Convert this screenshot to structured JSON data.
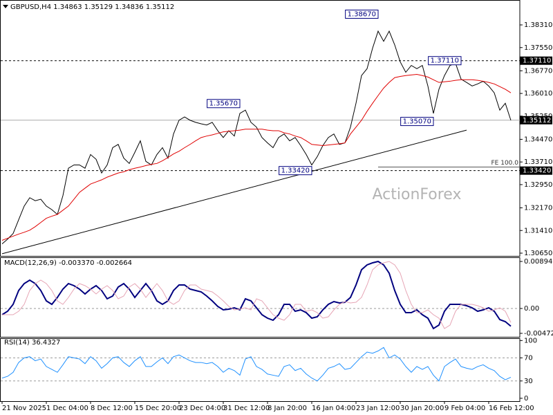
{
  "chart_data": [
    {
      "type": "line",
      "title": "GBPUSD,H4 1.34863 1.35129 1.34836 1.35112",
      "watermark": "ActionForex",
      "categories": [
        "21 Nov 2025",
        null,
        null,
        null,
        null,
        null,
        null,
        null,
        "1 Dec 04:00",
        null,
        null,
        null,
        null,
        null,
        null,
        null,
        "8 Dec 12:00",
        null,
        null,
        null,
        null,
        null,
        null,
        null,
        "15 Dec 20:00",
        null,
        null,
        null,
        null,
        null,
        null,
        null,
        "23 Dec 04:00",
        null,
        null,
        null,
        null,
        null,
        null,
        null,
        "31 Dec 12:00",
        null,
        null,
        null,
        null,
        null,
        null,
        null,
        "8 Jan 20:00",
        null,
        null,
        null,
        null,
        null,
        null,
        null,
        "16 Jan 04:00",
        null,
        null,
        null,
        null,
        null,
        null,
        null,
        "23 Jan 12:00",
        null,
        null,
        null,
        null,
        null,
        null,
        null,
        "30 Jan 20:00",
        null,
        null,
        null,
        null,
        null,
        null,
        null,
        "9 Feb 04:00",
        null,
        null,
        null,
        null,
        null,
        null,
        null,
        "16 Feb 12:00",
        null,
        null,
        null,
        null
      ],
      "series": [
        {
          "color": "#000000",
          "values": [
            1.3096,
            1.3112,
            1.3131,
            1.3177,
            1.3223,
            1.3251,
            1.3241,
            1.3246,
            1.3223,
            1.3211,
            1.3195,
            1.3258,
            1.335,
            1.3361,
            1.3361,
            1.335,
            1.3396,
            1.338,
            1.3334,
            1.3361,
            1.3419,
            1.343,
            1.3384,
            1.3366,
            1.3403,
            1.3442,
            1.3373,
            1.3361,
            1.3396,
            1.3419,
            1.3384,
            1.3465,
            1.3511,
            1.3522,
            1.3511,
            1.3504,
            1.3499,
            1.3495,
            1.3504,
            1.3476,
            1.3453,
            1.3476,
            1.3458,
            1.3534,
            1.3545,
            1.3504,
            1.3488,
            1.3453,
            1.3435,
            1.3419,
            1.3453,
            1.3465,
            1.3442,
            1.3453,
            1.3426,
            1.3396,
            1.3361,
            1.3389,
            1.3426,
            1.3453,
            1.3465,
            1.343,
            1.3435,
            1.3488,
            1.3568,
            1.3661,
            1.3684,
            1.3753,
            1.381,
            1.3776,
            1.381,
            1.3764,
            1.3707,
            1.3672,
            1.3695,
            1.3684,
            1.3695,
            1.3626,
            1.3534,
            1.3615,
            1.3661,
            1.3695,
            1.3702,
            1.3649,
            1.3638,
            1.3626,
            1.3633,
            1.3642,
            1.3626,
            1.3603,
            1.3545,
            1.3568,
            1.3511
          ]
        },
        {
          "color": "#e00000",
          "values": [
            1.3108,
            1.3115,
            1.3122,
            1.3129,
            1.3135,
            1.3142,
            1.3154,
            1.3168,
            1.3182,
            1.3189,
            1.3195,
            1.3209,
            1.3223,
            1.3246,
            1.3269,
            1.3283,
            1.3297,
            1.3304,
            1.3311,
            1.332,
            1.3327,
            1.3334,
            1.3338,
            1.3345,
            1.335,
            1.3354,
            1.3359,
            1.3363,
            1.3366,
            1.3375,
            1.3386,
            1.3398,
            1.3407,
            1.3419,
            1.343,
            1.3442,
            1.3453,
            1.3458,
            1.3462,
            1.3467,
            1.3472,
            1.3474,
            1.3476,
            1.3478,
            1.3481,
            1.3481,
            1.3481,
            1.3481,
            1.3478,
            1.3476,
            1.3476,
            1.3469,
            1.3465,
            1.3458,
            1.3453,
            1.3442,
            1.343,
            1.3428,
            1.3426,
            1.3428,
            1.343,
            1.3432,
            1.3435,
            1.3465,
            1.3488,
            1.3511,
            1.3541,
            1.3568,
            1.3594,
            1.3619,
            1.3638,
            1.3654,
            1.3658,
            1.3661,
            1.3663,
            1.3665,
            1.3661,
            1.3656,
            1.3647,
            1.3638,
            1.364,
            1.3642,
            1.3645,
            1.3647,
            1.3647,
            1.3647,
            1.3645,
            1.3642,
            1.3638,
            1.3633,
            1.3624,
            1.3615,
            1.3603
          ]
        }
      ],
      "ylim": [
        1.30557,
        1.39146
      ],
      "yticks": [
        {
          "value": 1.3831,
          "label": "1.38310"
        },
        {
          "value": 1.3755,
          "label": "1.37550"
        },
        {
          "value": 1.3677,
          "label": "1.36770"
        },
        {
          "value": 1.3601,
          "label": "1.36010"
        },
        {
          "value": 1.3525,
          "label": "1.35250"
        },
        {
          "value": 1.3447,
          "label": "1.34470"
        },
        {
          "value": 1.3371,
          "label": "1.33710"
        },
        {
          "value": 1.3295,
          "label": "1.32950"
        },
        {
          "value": 1.3217,
          "label": "1.32170"
        },
        {
          "value": 1.3141,
          "label": "1.31410"
        },
        {
          "value": 1.3065,
          "label": "1.30650"
        }
      ],
      "hlines": [
        {
          "value": 1.3711,
          "label": "1.37110",
          "style": "dashed"
        },
        {
          "value": 1.3342,
          "label": "1.33420",
          "style": "dashed"
        },
        {
          "value": 1.35112,
          "label": "1.35112",
          "style": "solid"
        }
      ],
      "pivots": [
        {
          "x": 68,
          "value": 1.3867,
          "label": "1.38670"
        },
        {
          "x": 43,
          "value": 1.3567,
          "label": "1.35670"
        },
        {
          "x": 78,
          "value": 1.3507,
          "label": "1.35070"
        },
        {
          "x": 83,
          "value": 1.3711,
          "label": "1.37110"
        },
        {
          "x": 56,
          "value": 1.3342,
          "label": "1.33420"
        }
      ],
      "fe": {
        "text": "FE 100.0",
        "value": 1.3354,
        "from": 68
      },
      "trendline": {
        "from": [
          0,
          1.3063
        ],
        "to": [
          84,
          1.3478
        ]
      }
    },
    {
      "type": "line",
      "title": "MACD(12,26,9) -0.003370 -0.002664",
      "series": [
        {
          "color": "#00007f",
          "values": [
            -0.001184,
            -0.000526,
            0.000789,
            0.003419,
            0.004734,
            0.005392,
            0.004734,
            0.003419,
            0.001447,
            0.000789,
            0.002104,
            0.003682,
            0.004734,
            0.00434,
            0.003682,
            0.002762,
            0.003682,
            0.00434,
            0.003419,
            0.001841,
            0.002367,
            0.004077,
            0.004734,
            0.003682,
            0.002104,
            0.003419,
            0.004734,
            0.003419,
            0.001447,
            0.000789,
            0.001447,
            0.003419,
            0.004471,
            0.004471,
            0.003682,
            0.003419,
            0.003156,
            0.002367,
            0.001447,
            0.000395,
            -0.000263,
            -0.000132,
            0.000132,
            -0.000263,
            0.001841,
            0.001447,
            0.000132,
            -0.001184,
            -0.001841,
            -0.002236,
            -0.001184,
            0.000789,
            0.000789,
            -0.000526,
            -0.000263,
            -0.000789,
            -0.001841,
            -0.001578,
            -0.000263,
            0.000789,
            0.001315,
            0.001052,
            0.001184,
            0.002104,
            0.004471,
            0.007364,
            0.008285,
            0.008679,
            0.008942,
            0.008285,
            0.006707,
            0.003419,
            0.000789,
            -0.000789,
            -0.000789,
            -0.000263,
            -0.001184,
            -0.001841,
            -0.003814,
            -0.003156,
            -0.000526,
            0.000789,
            0.000789,
            0.000789,
            0.000526,
            0.000132,
            -0.000526,
            -0.000263,
            0.000132,
            -0.000526,
            -0.002104,
            -0.002499,
            -0.00337
          ]
        },
        {
          "color": "#e6a4b4",
          "values": [
            -0.001184,
            -0.001184,
            -0.001184,
            -0.000526,
            0.000789,
            0.003419,
            0.004734,
            0.005392,
            0.004734,
            0.003419,
            0.001447,
            0.000789,
            0.002104,
            0.003682,
            0.004734,
            0.00434,
            0.003682,
            0.002762,
            0.003682,
            0.00434,
            0.003419,
            0.001841,
            0.002367,
            0.004077,
            0.004734,
            0.003682,
            0.002104,
            0.003419,
            0.004734,
            0.003419,
            0.001447,
            0.000789,
            0.001447,
            0.003419,
            0.004471,
            0.004471,
            0.003682,
            0.003419,
            0.003156,
            0.002367,
            0.001447,
            0.000395,
            -0.000263,
            -0.000132,
            0.000132,
            -0.000263,
            0.001841,
            0.001447,
            0.000132,
            -0.001184,
            -0.001841,
            -0.002236,
            -0.001184,
            0.000789,
            0.000789,
            -0.000526,
            -0.000263,
            -0.000789,
            -0.001841,
            -0.001578,
            -0.000263,
            0.000789,
            0.001315,
            0.001052,
            0.001184,
            0.002104,
            0.004471,
            0.007364,
            0.008285,
            0.008679,
            0.008942,
            0.008285,
            0.006707,
            0.003419,
            0.000789,
            -0.000789,
            -0.000789,
            -0.000263,
            -0.001184,
            -0.001841,
            -0.003814,
            -0.003156,
            -0.000526,
            0.000789,
            0.000789,
            0.000789,
            0.000526,
            0.000132,
            -0.000526,
            -0.000263,
            0.000132,
            -0.000526,
            -0.002664
          ]
        }
      ],
      "ylim": [
        -0.00539,
        0.00973
      ],
      "yticks": [
        0.008942,
        {
          "value": 0,
          "label": "0.00"
        },
        -0.004725
      ],
      "levels": [
        0
      ]
    },
    {
      "type": "line",
      "title": "RSI(14) 36.4327",
      "series": [
        {
          "color": "#1e90ff",
          "values": [
            35,
            38,
            45,
            62,
            70,
            72,
            65,
            68,
            55,
            50,
            45,
            58,
            72,
            70,
            68,
            60,
            72,
            65,
            52,
            60,
            70,
            72,
            62,
            55,
            65,
            72,
            55,
            55,
            63,
            70,
            60,
            72,
            75,
            70,
            65,
            62,
            62,
            60,
            62,
            55,
            45,
            52,
            48,
            40,
            68,
            72,
            55,
            50,
            42,
            40,
            38,
            55,
            58,
            48,
            52,
            42,
            35,
            30,
            40,
            52,
            55,
            60,
            50,
            52,
            62,
            72,
            80,
            78,
            82,
            88,
            70,
            75,
            68,
            55,
            45,
            55,
            50,
            55,
            40,
            30,
            55,
            62,
            68,
            55,
            52,
            50,
            55,
            58,
            52,
            48,
            38,
            32,
            36.4327
          ]
        }
      ],
      "ylim": [
        -5,
        104
      ],
      "yticks": [
        100,
        70,
        30,
        0
      ],
      "levels": [
        70,
        30
      ]
    }
  ]
}
